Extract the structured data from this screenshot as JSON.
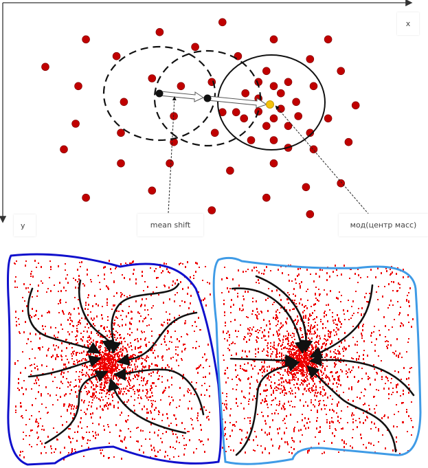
{
  "top_diagram": {
    "axis_x_label": "x",
    "axis_y_label": "y",
    "mean_shift_label": "mean shift",
    "mode_label": "мод(центр масс)",
    "point_color": "#c00000",
    "mode_point_color": "#f4c20d",
    "window_color": "#111111"
  },
  "bottom_diagram": {
    "left_cluster_outline_color": "#1010cc",
    "right_cluster_outline_color": "#3f9be6",
    "point_color": "#ee0000",
    "arrow_color": "#111111"
  }
}
